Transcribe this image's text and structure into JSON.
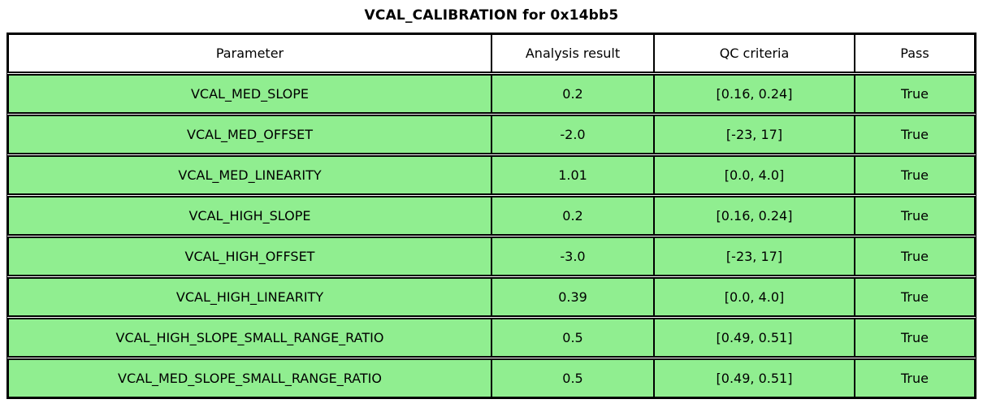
{
  "figure": {
    "title": "VCAL_CALIBRATION for 0x14bb5"
  },
  "chart_data": {
    "type": "table",
    "title": "VCAL_CALIBRATION for 0x14bb5",
    "columns": [
      "Parameter",
      "Analysis result",
      "QC criteria",
      "Pass"
    ],
    "rows": [
      [
        "VCAL_MED_SLOPE",
        "0.2",
        "[0.16, 0.24]",
        "True"
      ],
      [
        "VCAL_MED_OFFSET",
        "-2.0",
        "[-23, 17]",
        "True"
      ],
      [
        "VCAL_MED_LINEARITY",
        "1.01",
        "[0.0, 4.0]",
        "True"
      ],
      [
        "VCAL_HIGH_SLOPE",
        "0.2",
        "[0.16, 0.24]",
        "True"
      ],
      [
        "VCAL_HIGH_OFFSET",
        "-3.0",
        "[-23, 17]",
        "True"
      ],
      [
        "VCAL_HIGH_LINEARITY",
        "0.39",
        "[0.0, 4.0]",
        "True"
      ],
      [
        "VCAL_HIGH_SLOPE_SMALL_RANGE_RATIO",
        "0.5",
        "[0.49, 0.51]",
        "True"
      ],
      [
        "VCAL_MED_SLOPE_SMALL_RANGE_RATIO",
        "0.5",
        "[0.49, 0.51]",
        "True"
      ]
    ],
    "layout": {
      "legend": "none",
      "grid": "table-borders",
      "header_position": "top"
    },
    "colors": {
      "pass_row_bg": "#90EE90",
      "header_bg": "#ffffff",
      "border": "#000000",
      "text": "#000000"
    }
  }
}
